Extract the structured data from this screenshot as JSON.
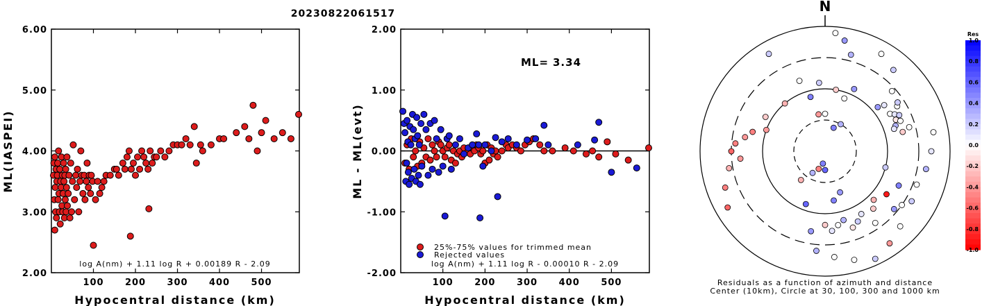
{
  "page_title": "20230822061517",
  "chart_data": [
    {
      "type": "scatter",
      "xlabel": "Hypocentral distance (km)",
      "ylabel": "ML(IASPEI)",
      "xlim": [
        0,
        590
      ],
      "ylim": [
        2.0,
        6.0
      ],
      "x_ticks": [
        "100",
        "200",
        "300",
        "400",
        "500"
      ],
      "y_ticks": [
        "2.00",
        "3.00",
        "4.00",
        "5.00",
        "6.00"
      ],
      "annotation": "log A(nm) + 1.11 log R + 0.00189 R - 2.09",
      "colors": {
        "point": "#dd1c1c"
      },
      "points": [
        [
          5,
          3.6
        ],
        [
          6,
          3.8
        ],
        [
          7,
          3.2
        ],
        [
          8,
          3.9
        ],
        [
          8,
          2.7
        ],
        [
          9,
          3.4
        ],
        [
          10,
          3.0
        ],
        [
          11,
          3.7
        ],
        [
          12,
          2.9
        ],
        [
          13,
          3.5
        ],
        [
          14,
          3.6
        ],
        [
          15,
          3.8
        ],
        [
          16,
          3.2
        ],
        [
          17,
          4.0
        ],
        [
          18,
          3.3
        ],
        [
          19,
          3.0
        ],
        [
          20,
          3.7
        ],
        [
          21,
          2.8
        ],
        [
          22,
          3.5
        ],
        [
          23,
          3.4
        ],
        [
          24,
          3.9
        ],
        [
          25,
          3.1
        ],
        [
          26,
          3.6
        ],
        [
          27,
          3.0
        ],
        [
          28,
          3.3
        ],
        [
          29,
          3.8
        ],
        [
          30,
          3.5
        ],
        [
          31,
          2.9
        ],
        [
          32,
          3.6
        ],
        [
          33,
          3.2
        ],
        [
          34,
          3.7
        ],
        [
          35,
          3.0
        ],
        [
          36,
          3.4
        ],
        [
          37,
          3.9
        ],
        [
          38,
          3.1
        ],
        [
          40,
          3.3
        ],
        [
          42,
          3.6
        ],
        [
          44,
          2.9
        ],
        [
          46,
          3.8
        ],
        [
          48,
          3.0
        ],
        [
          50,
          3.5
        ],
        [
          52,
          4.1
        ],
        [
          55,
          3.2
        ],
        [
          58,
          3.6
        ],
        [
          60,
          3.4
        ],
        [
          62,
          3.7
        ],
        [
          65,
          3.0
        ],
        [
          68,
          3.5
        ],
        [
          70,
          4.0
        ],
        [
          72,
          3.6
        ],
        [
          75,
          3.3
        ],
        [
          78,
          3.6
        ],
        [
          80,
          3.2
        ],
        [
          83,
          3.5
        ],
        [
          85,
          3.8
        ],
        [
          88,
          3.4
        ],
        [
          90,
          3.6
        ],
        [
          93,
          3.3
        ],
        [
          95,
          3.6
        ],
        [
          98,
          3.5
        ],
        [
          100,
          2.45
        ],
        [
          105,
          3.2
        ],
        [
          110,
          3.5
        ],
        [
          115,
          3.3
        ],
        [
          120,
          3.4
        ],
        [
          125,
          3.5
        ],
        [
          130,
          3.6
        ],
        [
          140,
          3.6
        ],
        [
          150,
          3.7
        ],
        [
          155,
          3.7
        ],
        [
          160,
          3.6
        ],
        [
          170,
          3.8
        ],
        [
          175,
          3.7
        ],
        [
          180,
          3.9
        ],
        [
          185,
          4.0
        ],
        [
          188,
          2.6
        ],
        [
          190,
          3.7
        ],
        [
          195,
          3.8
        ],
        [
          200,
          3.6
        ],
        [
          205,
          3.9
        ],
        [
          210,
          3.7
        ],
        [
          215,
          4.0
        ],
        [
          220,
          3.9
        ],
        [
          225,
          3.8
        ],
        [
          230,
          3.7
        ],
        [
          232,
          3.05
        ],
        [
          235,
          4.0
        ],
        [
          240,
          3.8
        ],
        [
          245,
          3.9
        ],
        [
          250,
          3.9
        ],
        [
          260,
          4.0
        ],
        [
          270,
          3.9
        ],
        [
          280,
          4.0
        ],
        [
          290,
          4.1
        ],
        [
          300,
          4.1
        ],
        [
          310,
          4.1
        ],
        [
          320,
          4.2
        ],
        [
          330,
          4.1
        ],
        [
          340,
          4.4
        ],
        [
          345,
          3.8
        ],
        [
          355,
          4.1
        ],
        [
          360,
          4.0
        ],
        [
          380,
          4.1
        ],
        [
          400,
          4.2
        ],
        [
          410,
          4.2
        ],
        [
          440,
          4.3
        ],
        [
          460,
          4.4
        ],
        [
          470,
          4.2
        ],
        [
          480,
          4.75
        ],
        [
          490,
          4.0
        ],
        [
          500,
          4.3
        ],
        [
          510,
          4.5
        ],
        [
          530,
          4.2
        ],
        [
          550,
          4.3
        ],
        [
          570,
          4.2
        ],
        [
          590,
          4.6
        ]
      ]
    },
    {
      "type": "scatter",
      "xlabel": "Hypocentral distance (km)",
      "ylabel": "ML - ML(evt)",
      "xlim": [
        0,
        590
      ],
      "ylim": [
        -2.0,
        2.0
      ],
      "x_ticks": [
        "100",
        "200",
        "300",
        "400",
        "500"
      ],
      "y_ticks": [
        "-2.00",
        "-1.00",
        "0.00",
        "1.00",
        "2.00"
      ],
      "ml_label": "ML=",
      "ml_value": "3.34",
      "legend": [
        "25%-75% values for trimmed mean",
        "Rejected values"
      ],
      "annotation": "log A(nm) + 1.11 log R - 0.00010 R - 2.09",
      "colors": {
        "trimmed": "#dd1c1c",
        "rejected": "#1a1ad6"
      },
      "trimmed_points": [
        [
          10,
          -0.2
        ],
        [
          15,
          0.1
        ],
        [
          20,
          -0.3
        ],
        [
          25,
          0.2
        ],
        [
          30,
          -0.1
        ],
        [
          35,
          0.0
        ],
        [
          40,
          -0.25
        ],
        [
          45,
          0.15
        ],
        [
          50,
          -0.2
        ],
        [
          55,
          0.05
        ],
        [
          60,
          -0.1
        ],
        [
          65,
          0.2
        ],
        [
          70,
          -0.15
        ],
        [
          75,
          0.1
        ],
        [
          80,
          0.0
        ],
        [
          85,
          -0.1
        ],
        [
          90,
          0.15
        ],
        [
          95,
          0.1
        ],
        [
          100,
          0.0
        ],
        [
          105,
          -0.1
        ],
        [
          110,
          0.05
        ],
        [
          115,
          0.1
        ],
        [
          120,
          -0.15
        ],
        [
          125,
          0.0
        ],
        [
          130,
          -0.2
        ],
        [
          135,
          -0.05
        ],
        [
          140,
          0.0
        ],
        [
          145,
          -0.1
        ],
        [
          150,
          0.05
        ],
        [
          160,
          0.0
        ],
        [
          165,
          -0.05
        ],
        [
          170,
          0.05
        ],
        [
          175,
          0.0
        ],
        [
          180,
          0.1
        ],
        [
          185,
          0.05
        ],
        [
          190,
          -0.05
        ],
        [
          195,
          0.0
        ],
        [
          200,
          -0.2
        ],
        [
          205,
          0.1
        ],
        [
          210,
          -0.15
        ],
        [
          215,
          0.05
        ],
        [
          220,
          -0.05
        ],
        [
          225,
          0.0
        ],
        [
          230,
          -0.1
        ],
        [
          240,
          0.0
        ],
        [
          250,
          0.1
        ],
        [
          255,
          0.05
        ],
        [
          265,
          0.1
        ],
        [
          275,
          0.05
        ],
        [
          285,
          0.0
        ],
        [
          295,
          0.1
        ],
        [
          305,
          0.15
        ],
        [
          315,
          0.2
        ],
        [
          330,
          0.1
        ],
        [
          340,
          0.0
        ],
        [
          360,
          0.0
        ],
        [
          390,
          0.05
        ],
        [
          410,
          0.0
        ],
        [
          440,
          -0.05
        ],
        [
          455,
          0.0
        ],
        [
          470,
          -0.1
        ],
        [
          490,
          0.15
        ],
        [
          510,
          -0.05
        ],
        [
          540,
          -0.15
        ],
        [
          590,
          0.05
        ]
      ],
      "rejected_points": [
        [
          5,
          0.65
        ],
        [
          8,
          0.45
        ],
        [
          10,
          0.3
        ],
        [
          12,
          -0.5
        ],
        [
          14,
          -0.2
        ],
        [
          15,
          0.5
        ],
        [
          17,
          0.15
        ],
        [
          18,
          -0.35
        ],
        [
          20,
          -0.55
        ],
        [
          22,
          0.4
        ],
        [
          24,
          0.1
        ],
        [
          26,
          -0.45
        ],
        [
          28,
          0.6
        ],
        [
          30,
          0.35
        ],
        [
          32,
          -0.3
        ],
        [
          34,
          0.2
        ],
        [
          36,
          -0.5
        ],
        [
          38,
          0.55
        ],
        [
          40,
          0.25
        ],
        [
          42,
          -0.4
        ],
        [
          44,
          0.1
        ],
        [
          46,
          -0.55
        ],
        [
          48,
          0.45
        ],
        [
          50,
          -0.25
        ],
        [
          55,
          0.6
        ],
        [
          60,
          0.35
        ],
        [
          65,
          -0.4
        ],
        [
          70,
          0.45
        ],
        [
          75,
          -0.3
        ],
        [
          80,
          0.5
        ],
        [
          85,
          0.2
        ],
        [
          90,
          -0.35
        ],
        [
          95,
          0.35
        ],
        [
          100,
          -0.25
        ],
        [
          105,
          -1.07
        ],
        [
          110,
          0.2
        ],
        [
          115,
          0.25
        ],
        [
          120,
          -0.3
        ],
        [
          130,
          0.1
        ],
        [
          140,
          0.2
        ],
        [
          150,
          -0.05
        ],
        [
          160,
          0.05
        ],
        [
          170,
          0.1
        ],
        [
          180,
          0.28
        ],
        [
          185,
          0.1
        ],
        [
          188,
          -1.1
        ],
        [
          195,
          -0.25
        ],
        [
          200,
          0.1
        ],
        [
          215,
          0.0
        ],
        [
          225,
          0.22
        ],
        [
          230,
          -0.75
        ],
        [
          240,
          0.15
        ],
        [
          255,
          0.2
        ],
        [
          275,
          0.1
        ],
        [
          300,
          0.18
        ],
        [
          320,
          0.2
        ],
        [
          340,
          0.42
        ],
        [
          350,
          0.1
        ],
        [
          420,
          0.1
        ],
        [
          460,
          0.18
        ],
        [
          470,
          0.47
        ],
        [
          500,
          -0.35
        ],
        [
          560,
          -0.28
        ]
      ]
    },
    {
      "type": "scatter",
      "subtype": "polar-residuals",
      "north_label": "N",
      "caption_line1": "Residuals as a function of azimuth and distance",
      "caption_line2": "Center (10km), Circle at 30, 100, 300 and 1000 km",
      "colorbar_title": "Res",
      "colorbar_ticks": [
        "1.0",
        "0.8",
        "0.6",
        "0.4",
        "0.2",
        "0.0",
        "-0.2",
        "-0.4",
        "-0.6",
        "-0.8",
        "-1.0"
      ],
      "colors": {
        "positive": "#0000ff",
        "negative": "#ff0000",
        "zero": "#ffffff"
      },
      "station_points": [
        [
          135,
          0.55,
          -0.3
        ],
        [
          140,
          0.6,
          -0.2
        ],
        [
          150,
          0.58,
          0.1
        ],
        [
          155,
          0.62,
          0.2
        ],
        [
          145,
          0.7,
          0.0
        ],
        [
          160,
          0.65,
          -0.1
        ],
        [
          165,
          0.57,
          0.3
        ],
        [
          170,
          0.6,
          0.0
        ],
        [
          175,
          0.64,
          0.1
        ],
        [
          180,
          0.59,
          -0.2
        ],
        [
          130,
          0.72,
          0.4
        ],
        [
          125,
          0.75,
          0.0
        ],
        [
          120,
          0.8,
          0.2
        ],
        [
          110,
          0.78,
          0.0
        ],
        [
          100,
          0.82,
          0.3
        ],
        [
          90,
          0.85,
          0.1
        ],
        [
          80,
          0.88,
          0.0
        ],
        [
          60,
          0.6,
          0.0
        ],
        [
          62,
          0.63,
          0.1
        ],
        [
          64,
          0.66,
          0.2
        ],
        [
          66,
          0.62,
          -0.1
        ],
        [
          68,
          0.65,
          0.0
        ],
        [
          70,
          0.6,
          0.3
        ],
        [
          58,
          0.68,
          0.0
        ],
        [
          56,
          0.7,
          0.2
        ],
        [
          72,
          0.58,
          0.1
        ],
        [
          74,
          0.7,
          0.0
        ],
        [
          50,
          0.55,
          0.4
        ],
        [
          48,
          0.72,
          0.0
        ],
        [
          76,
          0.64,
          -0.2
        ],
        [
          52,
          0.6,
          0.1
        ],
        [
          40,
          0.85,
          0.2
        ],
        [
          30,
          0.9,
          0.0
        ],
        [
          20,
          0.45,
          0.0
        ],
        [
          15,
          0.8,
          0.3
        ],
        [
          10,
          0.9,
          0.4
        ],
        [
          5,
          0.95,
          0.0
        ],
        [
          0,
          0.3,
          0.0
        ],
        [
          -10,
          0.3,
          -0.4
        ],
        [
          -20,
          0.6,
          0.0
        ],
        [
          -30,
          0.9,
          0.2
        ],
        [
          -40,
          0.5,
          -0.3
        ],
        [
          -60,
          0.55,
          -0.2
        ],
        [
          -70,
          0.5,
          -0.4
        ],
        [
          -75,
          0.6,
          -0.5
        ],
        [
          -80,
          0.65,
          -0.4
        ],
        [
          -85,
          0.72,
          -0.5
        ],
        [
          -90,
          0.75,
          -0.6
        ],
        [
          -95,
          0.68,
          -0.4
        ],
        [
          -100,
          0.78,
          -0.3
        ],
        [
          -110,
          0.85,
          -0.5
        ],
        [
          -120,
          0.9,
          -0.6
        ],
        [
          -200,
          0.35,
          0.4
        ],
        [
          -190,
          0.4,
          0.5
        ],
        [
          -180,
          0.15,
          0.6
        ],
        [
          -170,
          0.1,
          0.5
        ],
        [
          -160,
          0.15,
          -0.5
        ],
        [
          -150,
          0.2,
          0.3
        ],
        [
          -140,
          0.3,
          -0.3
        ],
        [
          200,
          0.45,
          0.6
        ],
        [
          190,
          0.65,
          0.4
        ],
        [
          185,
          0.8,
          0.3
        ],
        [
          175,
          0.85,
          0.0
        ],
        [
          165,
          0.9,
          0.0
        ],
        [
          155,
          0.95,
          0.2
        ],
        [
          145,
          0.9,
          -0.4
        ],
        [
          135,
          0.85,
          0.0
        ],
        [
          125,
          0.6,
          -0.9
        ],
        [
          115,
          0.65,
          0.5
        ],
        [
          105,
          0.5,
          0.2
        ],
        [
          20,
          0.2,
          0.5
        ],
        [
          30,
          0.25,
          0.3
        ],
        [
          10,
          0.5,
          -0.2
        ],
        [
          -5,
          0.55,
          0.2
        ],
        [
          -15,
          0.45,
          0.5
        ],
        [
          25,
          0.55,
          0.4
        ]
      ]
    }
  ]
}
